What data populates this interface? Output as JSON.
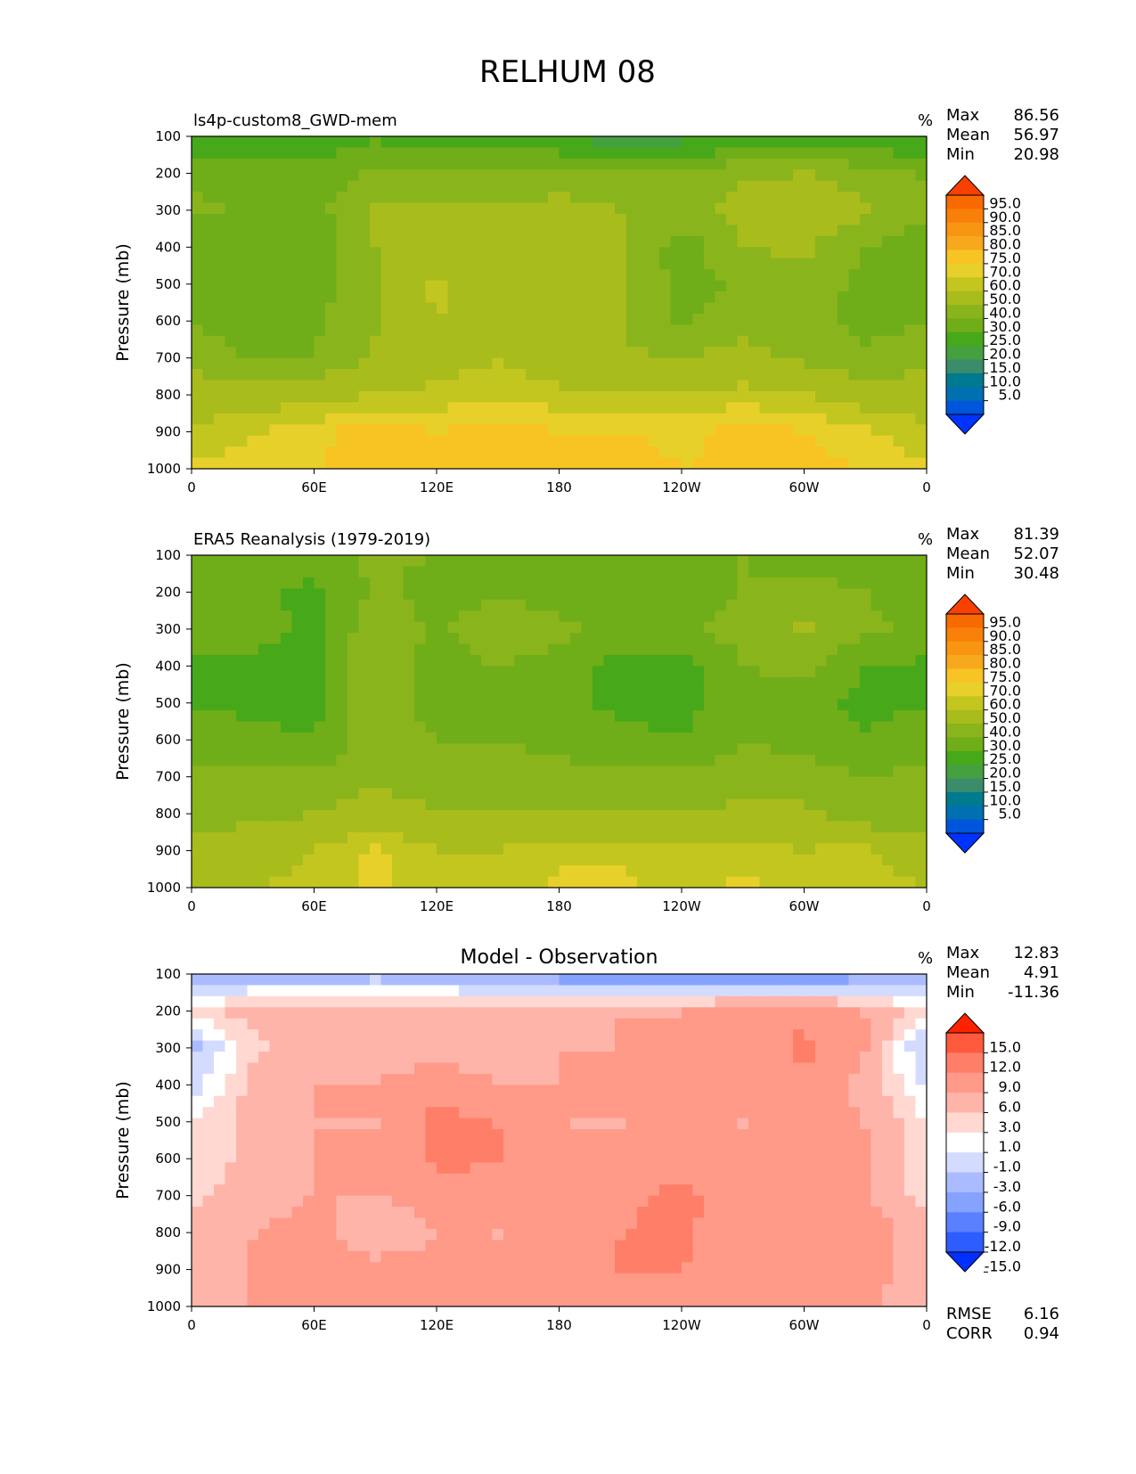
{
  "figure_title": "RELHUM 08",
  "colors": {
    "rh_levels": [
      "#0033ff",
      "#0055dd",
      "#0070b0",
      "#007a8e",
      "#3a8c6a",
      "#45a040",
      "#47a81a",
      "#6fae18",
      "#8ab41c",
      "#a8bc1c",
      "#c4c620",
      "#e8d02a",
      "#f8c424",
      "#f8a81c",
      "#f89612",
      "#f88008",
      "#f86a00",
      "#f84000"
    ],
    "diff_levels": [
      "#0030ff",
      "#2d5cff",
      "#5a80ff",
      "#85a2ff",
      "#aabcff",
      "#d3dbff",
      "#ffffff",
      "#ffd8d2",
      "#ffb4aa",
      "#ff9a88",
      "#ff7e68",
      "#ff5a3e",
      "#ff2200"
    ]
  },
  "chart_data": [
    {
      "type": "heatmap",
      "id": "model",
      "title": "ls4p-custom8_GWD-mem",
      "units": "%",
      "xlabel": "",
      "ylabel": "Pressure (mb)",
      "x_ticks": [
        "0",
        "60E",
        "120E",
        "180",
        "120W",
        "60W",
        "0"
      ],
      "y_ticks": [
        "100",
        "200",
        "300",
        "400",
        "500",
        "600",
        "700",
        "800",
        "900",
        "1000"
      ],
      "ylim": [
        100,
        1000
      ],
      "stats": [
        {
          "label": "Max",
          "value": "86.56"
        },
        {
          "label": "Mean",
          "value": "56.97"
        },
        {
          "label": "Min",
          "value": "20.98"
        }
      ],
      "colorbar_labels": [
        "95.0",
        "90.0",
        "85.0",
        "80.0",
        "75.0",
        "70.0",
        "60.0",
        "50.0",
        "40.0",
        "30.0",
        "25.0",
        "20.0",
        "15.0",
        "10.0",
        "5.0"
      ],
      "lon_points": [
        0,
        30,
        60,
        90,
        120,
        150,
        180,
        210,
        240,
        270,
        300,
        330,
        360
      ],
      "pressure_levels": [
        100,
        200,
        300,
        400,
        500,
        600,
        700,
        800,
        900,
        1000
      ],
      "values": [
        [
          32,
          35,
          35,
          38,
          36,
          34,
          30,
          24,
          26,
          32,
          30,
          28,
          32
        ],
        [
          48,
          45,
          42,
          52,
          52,
          50,
          52,
          50,
          50,
          58,
          60,
          56,
          48
        ],
        [
          52,
          48,
          46,
          62,
          64,
          62,
          65,
          60,
          55,
          64,
          68,
          62,
          52
        ],
        [
          44,
          40,
          44,
          60,
          66,
          64,
          62,
          62,
          44,
          60,
          62,
          50,
          44
        ],
        [
          46,
          42,
          46,
          58,
          72,
          64,
          62,
          62,
          46,
          52,
          58,
          46,
          46
        ],
        [
          50,
          44,
          48,
          58,
          70,
          66,
          62,
          60,
          48,
          56,
          54,
          46,
          50
        ],
        [
          56,
          48,
          50,
          62,
          66,
          70,
          64,
          62,
          60,
          64,
          58,
          52,
          56
        ],
        [
          68,
          66,
          68,
          70,
          72,
          74,
          72,
          72,
          70,
          72,
          70,
          66,
          68
        ],
        [
          70,
          74,
          78,
          84,
          80,
          82,
          80,
          80,
          78,
          82,
          80,
          76,
          70
        ],
        [
          76,
          78,
          80,
          82,
          80,
          80,
          84,
          84,
          80,
          82,
          82,
          80,
          76
        ]
      ]
    },
    {
      "type": "heatmap",
      "id": "observation",
      "title": "ERA5 Reanalysis (1979-2019)",
      "units": "%",
      "xlabel": "",
      "ylabel": "Pressure (mb)",
      "x_ticks": [
        "0",
        "60E",
        "120E",
        "180",
        "120W",
        "60W",
        "0"
      ],
      "y_ticks": [
        "100",
        "200",
        "300",
        "400",
        "500",
        "600",
        "700",
        "800",
        "900",
        "1000"
      ],
      "ylim": [
        100,
        1000
      ],
      "stats": [
        {
          "label": "Max",
          "value": "81.39"
        },
        {
          "label": "Mean",
          "value": "52.07"
        },
        {
          "label": "Min",
          "value": "30.48"
        }
      ],
      "colorbar_labels": [
        "95.0",
        "90.0",
        "85.0",
        "80.0",
        "75.0",
        "70.0",
        "60.0",
        "50.0",
        "40.0",
        "30.0",
        "25.0",
        "20.0",
        "15.0",
        "10.0",
        "5.0"
      ],
      "lon_points": [
        0,
        30,
        60,
        90,
        120,
        150,
        180,
        210,
        240,
        270,
        300,
        330,
        360
      ],
      "pressure_levels": [
        100,
        200,
        300,
        400,
        500,
        600,
        700,
        800,
        900,
        1000
      ],
      "values": [
        [
          48,
          46,
          48,
          52,
          50,
          48,
          46,
          44,
          46,
          50,
          48,
          46,
          48
        ],
        [
          40,
          44,
          36,
          52,
          46,
          48,
          46,
          46,
          46,
          50,
          52,
          50,
          40
        ],
        [
          48,
          46,
          36,
          58,
          48,
          58,
          52,
          48,
          48,
          54,
          62,
          52,
          48
        ],
        [
          38,
          36,
          36,
          58,
          46,
          50,
          46,
          36,
          36,
          50,
          52,
          40,
          38
        ],
        [
          40,
          36,
          36,
          60,
          44,
          48,
          46,
          36,
          36,
          46,
          46,
          36,
          40
        ],
        [
          46,
          44,
          40,
          58,
          50,
          50,
          48,
          44,
          40,
          50,
          46,
          42,
          46
        ],
        [
          52,
          52,
          52,
          58,
          52,
          54,
          52,
          52,
          52,
          56,
          54,
          50,
          52
        ],
        [
          54,
          58,
          60,
          66,
          62,
          60,
          60,
          60,
          60,
          62,
          62,
          54,
          54
        ],
        [
          64,
          66,
          70,
          76,
          70,
          70,
          74,
          74,
          72,
          72,
          70,
          72,
          64
        ],
        [
          70,
          70,
          72,
          76,
          72,
          70,
          76,
          76,
          74,
          76,
          74,
          74,
          70
        ]
      ]
    },
    {
      "type": "heatmap",
      "id": "difference",
      "title": "Model - Observation",
      "units": "%",
      "xlabel": "",
      "ylabel": "Pressure (mb)",
      "x_ticks": [
        "0",
        "60E",
        "120E",
        "180",
        "120W",
        "60W",
        "0"
      ],
      "y_ticks": [
        "100",
        "200",
        "300",
        "400",
        "500",
        "600",
        "700",
        "800",
        "900",
        "1000"
      ],
      "ylim": [
        100,
        1000
      ],
      "stats": [
        {
          "label": "Max",
          "value": "12.83"
        },
        {
          "label": "Mean",
          "value": "4.91"
        },
        {
          "label": "Min",
          "value": "-11.36"
        }
      ],
      "extra_stats": [
        {
          "label": "RMSE",
          "value": "6.16"
        },
        {
          "label": "CORR",
          "value": "0.94"
        }
      ],
      "colorbar_labels": [
        "15.0",
        "12.0",
        "9.0",
        "6.0",
        "3.0",
        "1.0",
        "-1.0",
        "-3.0",
        "-6.0",
        "-9.0",
        "-12.0",
        "-15.0"
      ],
      "lon_points": [
        0,
        30,
        60,
        90,
        120,
        150,
        180,
        210,
        240,
        270,
        300,
        330,
        360
      ],
      "pressure_levels": [
        100,
        200,
        300,
        400,
        500,
        600,
        700,
        800,
        900,
        1000
      ],
      "values": [
        [
          -7,
          -5,
          -6,
          -4,
          -6,
          -6,
          -8,
          -9,
          -9,
          -9,
          -9,
          -8,
          -7
        ],
        [
          2,
          4,
          6,
          3,
          6,
          4,
          5,
          6,
          6,
          8,
          8,
          6,
          2
        ],
        [
          -4,
          2,
          6,
          4,
          5,
          4,
          6,
          6,
          6,
          6,
          10,
          6,
          -4
        ],
        [
          -2,
          4,
          6,
          6,
          8,
          6,
          6,
          7,
          8,
          6,
          8,
          5,
          -2
        ],
        [
          1,
          4,
          6,
          6,
          10,
          9,
          6,
          6,
          6,
          6,
          8,
          6,
          1
        ],
        [
          1,
          4,
          6,
          6,
          10,
          9,
          6,
          6,
          8,
          6,
          8,
          6,
          1
        ],
        [
          2,
          5,
          6,
          6,
          7,
          8,
          6,
          8,
          10,
          7,
          7,
          6,
          2
        ],
        [
          4,
          6,
          7,
          4,
          6,
          6,
          7,
          9,
          10,
          6,
          6,
          8,
          4
        ],
        [
          5,
          6,
          7,
          7,
          7,
          6,
          7,
          9,
          9,
          8,
          8,
          7,
          5
        ],
        [
          3,
          6,
          7,
          6,
          6,
          6,
          7,
          7,
          8,
          6,
          7,
          7,
          3
        ]
      ]
    }
  ]
}
